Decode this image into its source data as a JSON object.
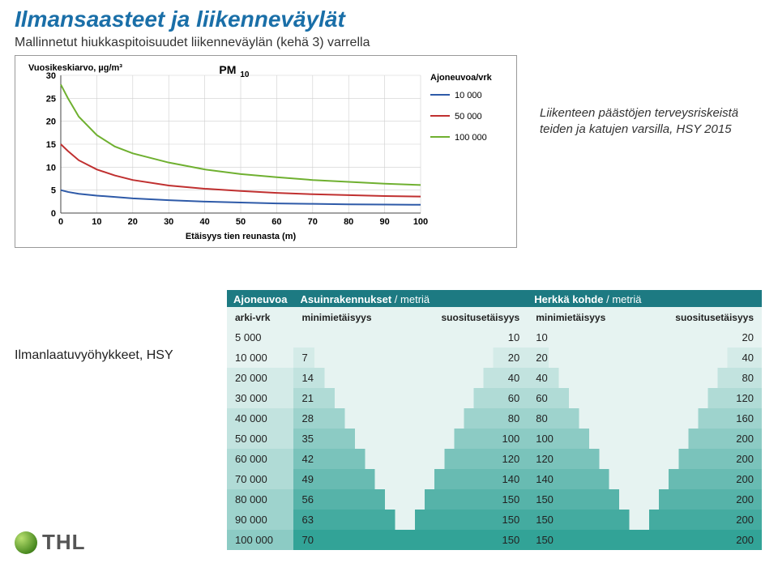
{
  "title": "Ilmansaasteet ja liikenneväylät",
  "subtitle": "Mallinnetut hiukkaspitoisuudet liikenneväylän (kehä 3) varrella",
  "side_note": "Liikenteen päästöjen terveysriskeistä teiden ja katujen varsilla, HSY 2015",
  "zones_label": "Ilmanlaatuvyöhykkeet, HSY",
  "logo": "THL",
  "chart": {
    "type": "line",
    "title": "PM₁₀",
    "ylabel": "Vuosikeskiarvo, µg/m³",
    "xlabel": "Etäisyys tien reunasta (m)",
    "legend_title": "Ajoneuvoa/vrk",
    "xlim": [
      0,
      100
    ],
    "ylim": [
      0,
      30
    ],
    "xticks": [
      0,
      10,
      20,
      30,
      40,
      50,
      60,
      70,
      80,
      90,
      100
    ],
    "yticks": [
      0,
      5,
      10,
      15,
      20,
      25,
      30
    ],
    "grid_color": "#cfcfcf",
    "axis_color": "#444",
    "bg": "#ffffff",
    "font_small": 11,
    "line_width": 2,
    "series": [
      {
        "label": "10 000",
        "color": "#2e5aa8",
        "x": [
          0,
          2,
          5,
          10,
          15,
          20,
          30,
          40,
          50,
          60,
          70,
          80,
          90,
          100
        ],
        "y": [
          5,
          4.6,
          4.2,
          3.8,
          3.5,
          3.2,
          2.8,
          2.5,
          2.3,
          2.1,
          2.0,
          1.9,
          1.85,
          1.8
        ]
      },
      {
        "label": "50 000",
        "color": "#c03030",
        "x": [
          0,
          2,
          5,
          10,
          15,
          20,
          30,
          40,
          50,
          60,
          70,
          80,
          90,
          100
        ],
        "y": [
          15,
          13.5,
          11.5,
          9.5,
          8.2,
          7.2,
          6.0,
          5.3,
          4.8,
          4.4,
          4.1,
          3.9,
          3.7,
          3.6
        ]
      },
      {
        "label": "100 000",
        "color": "#6fb030",
        "x": [
          0,
          2,
          5,
          10,
          15,
          20,
          30,
          40,
          50,
          60,
          70,
          80,
          90,
          100
        ],
        "y": [
          28,
          25,
          21,
          17,
          14.5,
          13,
          11,
          9.5,
          8.5,
          7.8,
          7.2,
          6.8,
          6.4,
          6.1
        ]
      }
    ]
  },
  "zones_table": {
    "headers": {
      "col1_a": "Ajoneuvoa",
      "col1_b": "arki-vrk",
      "col2_a": "Asuinrakennukset",
      "col2_unit": "/ metriä",
      "col2_b1": "minimietäisyys",
      "col2_b2": "suositusetäisyys",
      "col3_a": "Herkkä kohde",
      "col3_unit": "/ metriä",
      "col3_b1": "minimietäisyys",
      "col3_b2": "suositusetäisyys"
    },
    "rows": [
      [
        "5 000",
        "",
        "10",
        "10",
        "20"
      ],
      [
        "10 000",
        "7",
        "20",
        "20",
        "40"
      ],
      [
        "20 000",
        "14",
        "40",
        "40",
        "80"
      ],
      [
        "30 000",
        "21",
        "60",
        "60",
        "120"
      ],
      [
        "40 000",
        "28",
        "80",
        "80",
        "160"
      ],
      [
        "50 000",
        "35",
        "100",
        "100",
        "200"
      ],
      [
        "60 000",
        "42",
        "120",
        "120",
        "200"
      ],
      [
        "70 000",
        "49",
        "140",
        "140",
        "200"
      ],
      [
        "80 000",
        "56",
        "150",
        "150",
        "200"
      ],
      [
        "90 000",
        "63",
        "150",
        "150",
        "200"
      ],
      [
        "100 000",
        "70",
        "150",
        "150",
        "200"
      ]
    ],
    "teal_stops": [
      "#e6f3f1",
      "#d4ebe8",
      "#c2e3df",
      "#b0dbd6",
      "#9ed3cd",
      "#8ccbc4",
      "#7ac3bb",
      "#68bbb2",
      "#56b3a9",
      "#44aba0",
      "#32a397"
    ]
  }
}
